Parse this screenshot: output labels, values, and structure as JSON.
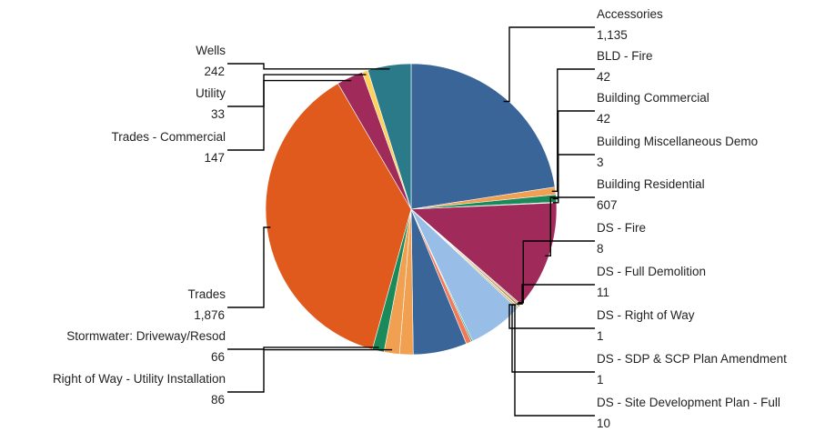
{
  "chart_data": {
    "type": "pie",
    "title": "",
    "start_angle_deg": 0,
    "direction": "clockwise",
    "slices": [
      {
        "label": "Accessories",
        "value_text": "1,135",
        "value": 1135,
        "color": "#3a6599"
      },
      {
        "label": "BLD - Fire",
        "value_text": "42",
        "value": 42,
        "color": "#f0a050"
      },
      {
        "label": "Building Commercial",
        "value_text": "42",
        "value": 42,
        "color": "#1a8a5a"
      },
      {
        "label": "Building Miscellaneous Demo",
        "value_text": "3",
        "value": 3,
        "color": "#2a7a8a"
      },
      {
        "label": "Building Residential",
        "value_text": "607",
        "value": 607,
        "color": "#a02a5a"
      },
      {
        "label": "DS - Fire",
        "value_text": "8",
        "value": 8,
        "color": "#c0a070"
      },
      {
        "label": "DS - Full Demolition",
        "value_text": "11",
        "value": 11,
        "color": "#a88850"
      },
      {
        "label": "DS - Right of Way",
        "value_text": "1",
        "value": 1,
        "color": "#7a8a9a"
      },
      {
        "label": "DS - SDP & SCP Plan Amendment",
        "value_text": "1",
        "value": 1,
        "color": "#e0d0a0"
      },
      {
        "label": "DS - Site Development Plan - Full",
        "value_text": "10",
        "value": 10,
        "color": "#d0b060"
      },
      {
        "label": "",
        "value": 305,
        "color": "#98bde6"
      },
      {
        "label": "",
        "value": 8,
        "color": "#1a9a7a"
      },
      {
        "label": "",
        "value": 30,
        "color": "#f07a5a"
      },
      {
        "label": "",
        "value": 300,
        "color": "#3a6599"
      },
      {
        "label": "",
        "value": 76,
        "color": "#f0a050"
      },
      {
        "label": "Right of Way - Utility Installation",
        "value_text": "86",
        "value": 86,
        "color": "#f0a050"
      },
      {
        "label": "Stormwater: Driveway/Resod",
        "value_text": "66",
        "value": 66,
        "color": "#1a8a5a"
      },
      {
        "label": "Trades",
        "value_text": "1,876",
        "value": 1876,
        "color": "#e05a1e"
      },
      {
        "label": "Trades - Commercial",
        "value_text": "147",
        "value": 147,
        "color": "#a02a5a"
      },
      {
        "label": "Utility",
        "value_text": "33",
        "value": 33,
        "color": "#ffd05a"
      },
      {
        "label": "Wells",
        "value_text": "242",
        "value": 242,
        "color": "#2a7a8a"
      }
    ]
  }
}
